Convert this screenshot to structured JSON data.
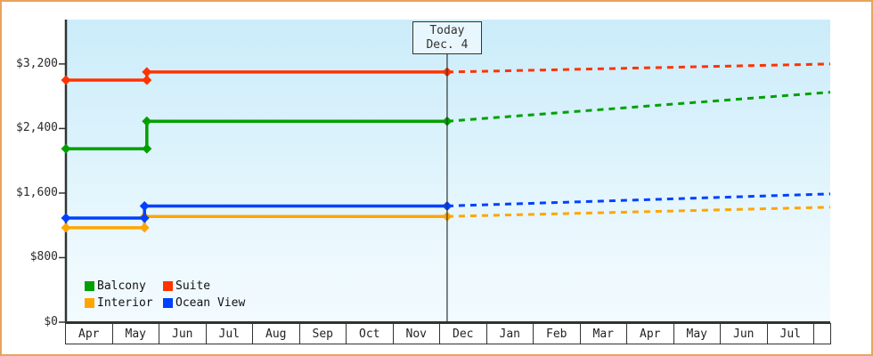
{
  "colors": {
    "frame_border": "#e9a45c",
    "axis": "#2f3434",
    "plot_bg_top": "#cbecfa",
    "plot_bg_bottom": "#f2fbff",
    "text": "#222222"
  },
  "annotation": {
    "line1": "Today",
    "line2": "Dec. 4"
  },
  "legend": [
    {
      "label": "Balcony",
      "color": "#00a000"
    },
    {
      "label": "Suite",
      "color": "#ff3300"
    },
    {
      "label": "Interior",
      "color": "#ffa500"
    },
    {
      "label": "Ocean View",
      "color": "#0040ff"
    }
  ],
  "chart_data": {
    "type": "line",
    "title": "",
    "xlabel": "",
    "ylabel": "",
    "grid": false,
    "legend_position": "bottom-left-inside",
    "x_categories": [
      "Apr",
      "May",
      "Jun",
      "Jul",
      "Aug",
      "Sep",
      "Oct",
      "Nov",
      "Dec",
      "Jan",
      "Feb",
      "Mar",
      "Apr",
      "May",
      "Jun",
      "Jul"
    ],
    "y_ticks": [
      {
        "label": "$0",
        "value": 0
      },
      {
        "label": "$800",
        "value": 800
      },
      {
        "label": "$1,600",
        "value": 1600
      },
      {
        "label": "$2,400",
        "value": 2400
      },
      {
        "label": "$3,200",
        "value": 3200
      }
    ],
    "ylim": [
      0,
      3750
    ],
    "xlim": [
      0,
      16.34
    ],
    "today_x": 8.15,
    "series": [
      {
        "name": "Balcony",
        "color": "#00a000",
        "solid_points": [
          [
            0,
            2150
          ],
          [
            1.73,
            2150
          ],
          [
            1.73,
            2490
          ],
          [
            8.15,
            2490
          ]
        ],
        "forecast_points": [
          [
            8.15,
            2490
          ],
          [
            16.34,
            2850
          ]
        ]
      },
      {
        "name": "Suite",
        "color": "#ff3300",
        "solid_points": [
          [
            0,
            3000
          ],
          [
            1.73,
            3000
          ],
          [
            1.73,
            3100
          ],
          [
            8.15,
            3100
          ]
        ],
        "forecast_points": [
          [
            8.15,
            3100
          ],
          [
            16.34,
            3200
          ]
        ]
      },
      {
        "name": "Interior",
        "color": "#ffa500",
        "solid_points": [
          [
            0,
            1170
          ],
          [
            1.68,
            1170
          ],
          [
            1.68,
            1310
          ],
          [
            8.15,
            1310
          ]
        ],
        "forecast_points": [
          [
            8.15,
            1310
          ],
          [
            16.34,
            1425
          ]
        ]
      },
      {
        "name": "Ocean View",
        "color": "#0040ff",
        "solid_points": [
          [
            0,
            1290
          ],
          [
            1.68,
            1290
          ],
          [
            1.68,
            1440
          ],
          [
            8.15,
            1440
          ]
        ],
        "forecast_points": [
          [
            8.15,
            1440
          ],
          [
            16.34,
            1590
          ]
        ]
      }
    ]
  }
}
